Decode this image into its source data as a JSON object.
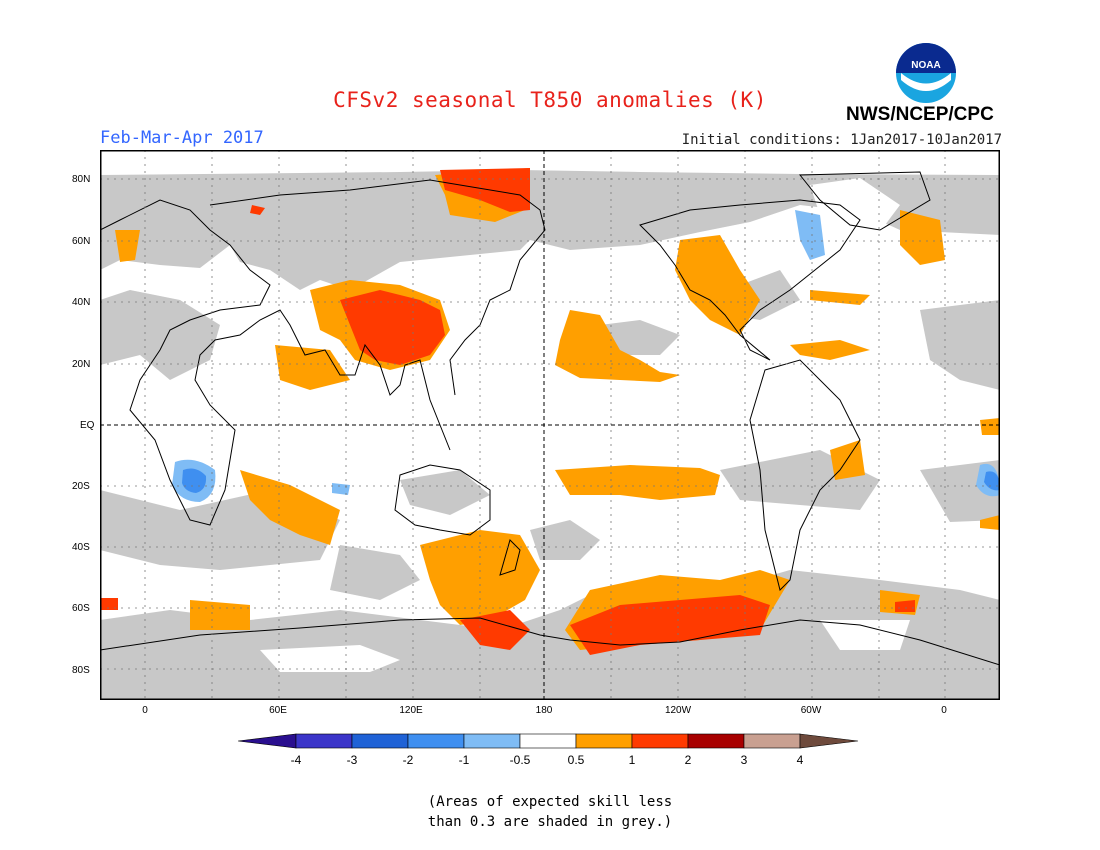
{
  "title": "CFSv2 seasonal T850 anomalies (K)",
  "agency": "NWS/NCEP/CPC",
  "logo_text": "NOAA",
  "period": "Feb-Mar-Apr 2017",
  "initial_conditions": "Initial conditions: 1Jan2017-10Jan2017",
  "lat_labels": [
    "80N",
    "60N",
    "40N",
    "20N",
    "EQ",
    "20S",
    "40S",
    "60S",
    "80S"
  ],
  "lon_labels": [
    "0",
    "60E",
    "120E",
    "180",
    "120W",
    "60W",
    "0"
  ],
  "colorbar": {
    "labels": [
      "-4",
      "-3",
      "-2",
      "-1",
      "-0.5",
      "0.5",
      "1",
      "2",
      "3",
      "4"
    ],
    "colors": [
      "#2a0f8f",
      "#3b35c9",
      "#1f62d6",
      "#3f8ff0",
      "#7fbcf5",
      "#ffffff",
      "#ff9f00",
      "#ff3a00",
      "#a80000",
      "#c9a091",
      "#6e4a3c"
    ]
  },
  "note_line1": "(Areas of expected skill less",
  "note_line2": "than 0.3 are shaded in grey.)",
  "colors": {
    "grey": "#c8c8c8",
    "title": "#e8221b",
    "period": "#3366ff"
  }
}
